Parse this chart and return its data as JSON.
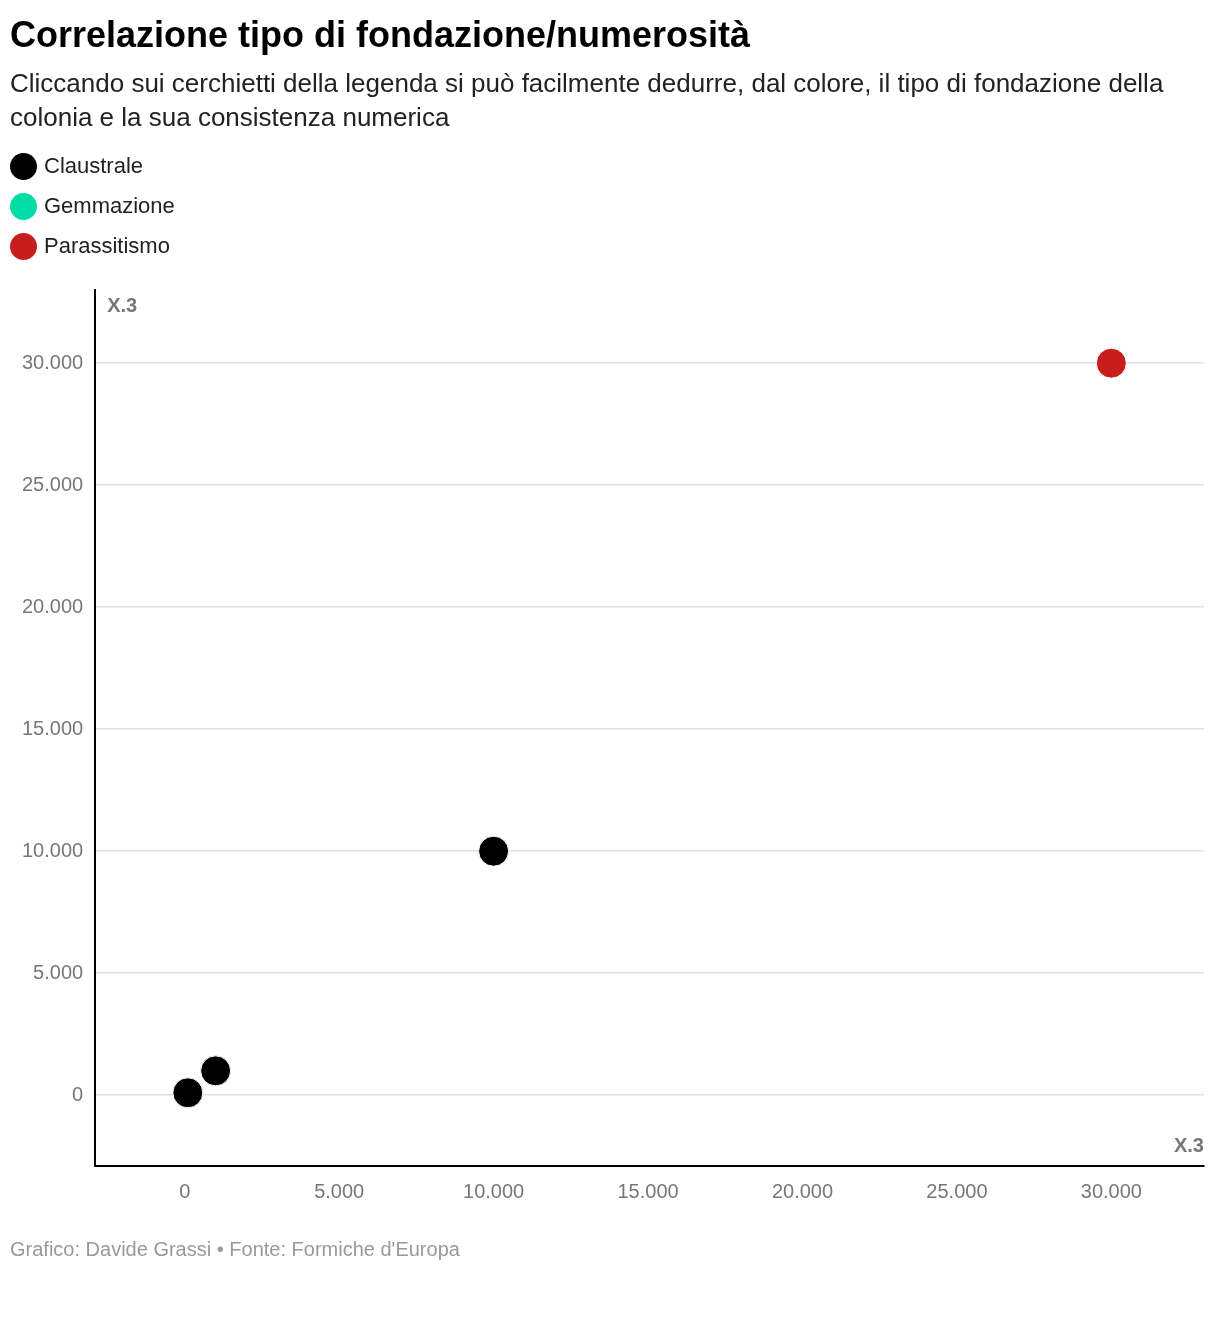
{
  "chart_data": {
    "type": "scatter",
    "title": "Correlazione tipo di fondazione/numerosità",
    "subtitle": "Cliccando sui cerchietti della legenda si può facilmente dedurre, dal colore, il tipo di fondazione della colonia e la sua consistenza numerica",
    "xlabel": "X.3",
    "ylabel": "X.3",
    "series": [
      {
        "name": "Claustrale",
        "color": "#000000",
        "x": [
          100,
          1000,
          10000
        ],
        "values": [
          100,
          1000,
          10000
        ]
      },
      {
        "name": "Gemmazione",
        "color": "#00dca6"
      },
      {
        "name": "Parassitismo",
        "color": "#c71e1d",
        "x": [
          30000
        ],
        "values": [
          30000
        ]
      }
    ],
    "xlim": [
      -2900,
      33000
    ],
    "ylim": [
      -2900,
      33000
    ],
    "xticks": [
      0,
      {
        "value": 5000,
        "label": "5.000"
      },
      {
        "value": 10000,
        "label": "10.000"
      },
      {
        "value": 15000,
        "label": "15.000"
      },
      {
        "value": 20000,
        "label": "20.000"
      },
      {
        "value": 25000,
        "label": "25.000"
      },
      {
        "value": 30000,
        "label": "30.000"
      }
    ],
    "yticks": [
      0,
      {
        "value": 5000,
        "label": "5.000"
      },
      {
        "value": 10000,
        "label": "10.000"
      },
      {
        "value": 15000,
        "label": "15.000"
      },
      {
        "value": 20000,
        "label": "20.000"
      },
      {
        "value": 25000,
        "label": "25.000"
      },
      {
        "value": 30000,
        "label": "30.000"
      }
    ],
    "grid": "y",
    "legend": "top left",
    "marker": "circle",
    "annotations": [
      "Grafico: Davide Grassi • Fonte: Formiche d'Europa"
    ]
  }
}
